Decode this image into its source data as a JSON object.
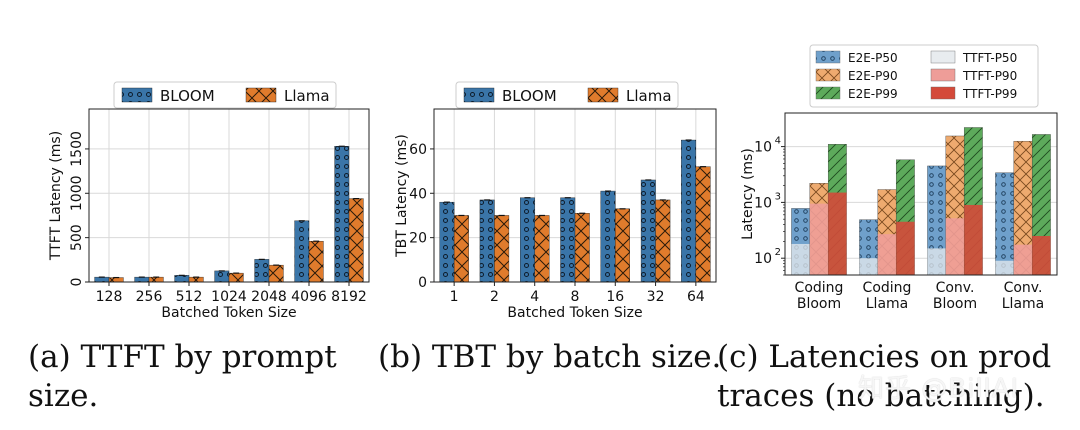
{
  "chart_data": [
    {
      "type": "bar",
      "ylabel": "TTFT Latency (ms)",
      "xlabel": "Batched Token Size",
      "categories": [
        "128",
        "256",
        "512",
        "1024",
        "2048",
        "4096",
        "8192"
      ],
      "yticks": [
        "0",
        "500",
        "1000",
        "1500"
      ],
      "ylim": [
        0,
        1950
      ],
      "series": [
        {
          "name": "BLOOM",
          "values": [
            55,
            55,
            75,
            125,
            255,
            690,
            1530
          ]
        },
        {
          "name": "Llama",
          "values": [
            50,
            55,
            55,
            100,
            190,
            460,
            940
          ]
        }
      ],
      "legend": "top"
    },
    {
      "type": "bar",
      "ylabel": "TBT Latency (ms)",
      "xlabel": "Batched Token Size",
      "categories": [
        "1",
        "2",
        "4",
        "8",
        "16",
        "32",
        "64"
      ],
      "yticks": [
        "0",
        "20",
        "40",
        "60"
      ],
      "ylim": [
        0,
        78
      ],
      "series": [
        {
          "name": "BLOOM",
          "values": [
            36,
            37,
            38,
            38,
            41,
            46,
            64
          ]
        },
        {
          "name": "Llama",
          "values": [
            30,
            30,
            30,
            31,
            33,
            37,
            52
          ]
        }
      ],
      "legend": "top"
    },
    {
      "type": "bar",
      "ylabel": "Latency (ms)",
      "yscale": "log",
      "categories": [
        "Coding\nBloom",
        "Coding\nLlama",
        "Conv.\nBloom",
        "Conv.\nLlama"
      ],
      "ylim": [
        50,
        40000
      ],
      "series": [
        {
          "name": "E2E-P50",
          "values": [
            780,
            490,
            4500,
            3400
          ]
        },
        {
          "name": "E2E-P90",
          "values": [
            2200,
            1700,
            15500,
            12500
          ]
        },
        {
          "name": "E2E-P99",
          "values": [
            11000,
            5800,
            22000,
            16500
          ]
        },
        {
          "name": "TTFT-P50",
          "values": [
            180,
            100,
            150,
            90
          ]
        },
        {
          "name": "TTFT-P90",
          "values": [
            950,
            270,
            520,
            175
          ]
        },
        {
          "name": "TTFT-P99",
          "values": [
            1500,
            450,
            900,
            250
          ]
        }
      ],
      "legend": "top"
    }
  ],
  "captions": {
    "a_line1": "(a)  TTFT  by  prompt",
    "a_line2": "size.",
    "b_line1": "(b) TBT by batch size.",
    "c_line1": "(c)  Latencies  on  prod",
    "c_line2": "traces (no batching)."
  },
  "watermark": "知乎 @BillAI",
  "colors": {
    "bloom": "#3a75a8",
    "llama": "#e07b2c",
    "e2e_p50": "#6fa0cb",
    "e2e_p90": "#eeaa6f",
    "e2e_p99": "#5daa5b",
    "ttft_p50": "#e8ecef",
    "ttft_p90": "#ee9d98",
    "ttft_p99": "#d44a3a"
  }
}
